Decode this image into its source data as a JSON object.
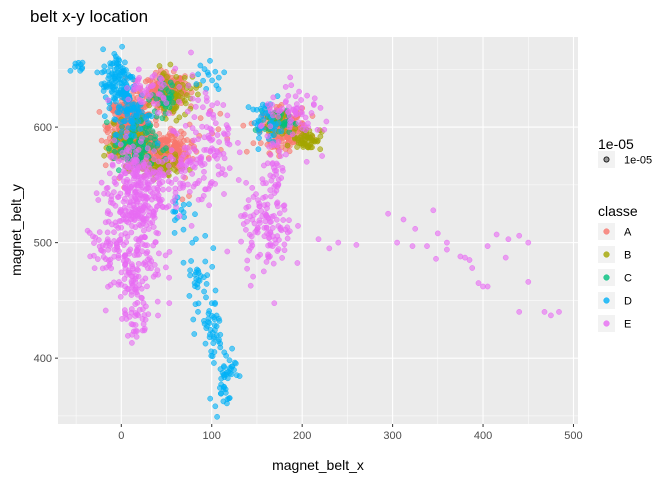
{
  "chart_data": {
    "type": "scatter",
    "title": "belt x-y location",
    "xlabel": "magnet_belt_x",
    "ylabel": "magnet_belt_y",
    "xlim": [
      -70,
      505
    ],
    "ylim": [
      343,
      678
    ],
    "x_ticks": [
      0,
      100,
      200,
      300,
      400,
      500
    ],
    "y_ticks": [
      400,
      500,
      600
    ],
    "grid": true,
    "size_legend": {
      "title": "1e-05",
      "label": "1e-05"
    },
    "legend": {
      "title": "classe",
      "position": "right"
    },
    "series": [
      {
        "name": "A",
        "color": "#F8766D",
        "clusters": [
          {
            "cx": 50,
            "cy": 632,
            "sx": 10,
            "sy": 7,
            "n": 260
          },
          {
            "cx": 10,
            "cy": 600,
            "sx": 12,
            "sy": 13,
            "n": 420
          },
          {
            "cx": 45,
            "cy": 580,
            "sx": 15,
            "sy": 8,
            "n": 240
          },
          {
            "cx": 180,
            "cy": 600,
            "sx": 12,
            "sy": 8,
            "n": 230
          },
          {
            "cx": 70,
            "cy": 585,
            "sx": 25,
            "sy": 20,
            "n": 30
          }
        ]
      },
      {
        "name": "B",
        "color": "#A3A500",
        "clusters": [
          {
            "cx": 5,
            "cy": 585,
            "sx": 12,
            "sy": 8,
            "n": 90
          },
          {
            "cx": 40,
            "cy": 565,
            "sx": 12,
            "sy": 5,
            "n": 80
          },
          {
            "cx": 60,
            "cy": 628,
            "sx": 12,
            "sy": 10,
            "n": 60
          },
          {
            "cx": 205,
            "cy": 590,
            "sx": 8,
            "sy": 5,
            "n": 60
          },
          {
            "cx": 168,
            "cy": 605,
            "sx": 6,
            "sy": 5,
            "n": 30
          }
        ]
      },
      {
        "name": "C",
        "color": "#00BF7D",
        "clusters": [
          {
            "cx": 15,
            "cy": 585,
            "sx": 12,
            "sy": 12,
            "n": 90
          },
          {
            "cx": 50,
            "cy": 625,
            "sx": 8,
            "sy": 8,
            "n": 30
          },
          {
            "cx": 175,
            "cy": 605,
            "sx": 8,
            "sy": 5,
            "n": 30
          }
        ]
      },
      {
        "name": "D",
        "color": "#00B0F6",
        "clusters": [
          {
            "cx": -3,
            "cy": 640,
            "sx": 9,
            "sy": 14,
            "n": 120
          },
          {
            "cx": 12,
            "cy": 612,
            "sx": 10,
            "sy": 12,
            "n": 70
          },
          {
            "cx": 65,
            "cy": 530,
            "sx": 6,
            "sy": 10,
            "n": 15
          },
          {
            "cx": 85,
            "cy": 475,
            "sx": 7,
            "sy": 20,
            "n": 35
          },
          {
            "cx": 100,
            "cy": 425,
            "sx": 6,
            "sy": 15,
            "n": 40
          },
          {
            "cx": 115,
            "cy": 385,
            "sx": 6,
            "sy": 15,
            "n": 45
          },
          {
            "cx": 160,
            "cy": 605,
            "sx": 8,
            "sy": 8,
            "n": 40
          },
          {
            "cx": -45,
            "cy": 652,
            "sx": 6,
            "sy": 3,
            "n": 10
          },
          {
            "cx": 95,
            "cy": 645,
            "sx": 10,
            "sy": 8,
            "n": 15
          }
        ]
      },
      {
        "name": "E",
        "color": "#E76BF3",
        "clusters": [
          {
            "cx": 15,
            "cy": 545,
            "sx": 15,
            "sy": 22,
            "n": 260
          },
          {
            "cx": 10,
            "cy": 490,
            "sx": 18,
            "sy": 25,
            "n": 170
          },
          {
            "cx": 20,
            "cy": 440,
            "sx": 8,
            "sy": 12,
            "n": 40
          },
          {
            "cx": 65,
            "cy": 560,
            "sx": 20,
            "sy": 15,
            "n": 90
          },
          {
            "cx": 100,
            "cy": 590,
            "sx": 12,
            "sy": 20,
            "n": 50
          },
          {
            "cx": 160,
            "cy": 510,
            "sx": 15,
            "sy": 20,
            "n": 110
          },
          {
            "cx": 170,
            "cy": 560,
            "sx": 7,
            "sy": 20,
            "n": 45
          },
          {
            "cx": 195,
            "cy": 610,
            "sx": 20,
            "sy": 10,
            "n": 60
          },
          {
            "cx": 85,
            "cy": 600,
            "sx": 20,
            "sy": 25,
            "n": 30
          },
          {
            "cx": 30,
            "cy": 630,
            "sx": 15,
            "sy": 12,
            "n": 40
          },
          {
            "cx": -20,
            "cy": 500,
            "sx": 10,
            "sy": 8,
            "n": 15
          }
        ],
        "points": [
          [
            240,
            500
          ],
          [
            260,
            498
          ],
          [
            295,
            525
          ],
          [
            312,
            520
          ],
          [
            325,
            512
          ],
          [
            345,
            528
          ],
          [
            322,
            497
          ],
          [
            350,
            508
          ],
          [
            360,
            494
          ],
          [
            348,
            486
          ],
          [
            375,
            488
          ],
          [
            385,
            485
          ],
          [
            388,
            478
          ],
          [
            380,
            487
          ],
          [
            405,
            497
          ],
          [
            415,
            507
          ],
          [
            428,
            503
          ],
          [
            440,
            506
          ],
          [
            450,
            500
          ],
          [
            425,
            487
          ],
          [
            450,
            466
          ],
          [
            405,
            462
          ],
          [
            440,
            440
          ],
          [
            468,
            440
          ],
          [
            475,
            437
          ],
          [
            484,
            440
          ],
          [
            230,
            495
          ],
          [
            218,
            503
          ],
          [
            222,
            575
          ],
          [
            205,
            570
          ],
          [
            400,
            462
          ],
          [
            338,
            497
          ],
          [
            305,
            500
          ],
          [
            395,
            465
          ],
          [
            360,
            500
          ]
        ]
      }
    ]
  }
}
